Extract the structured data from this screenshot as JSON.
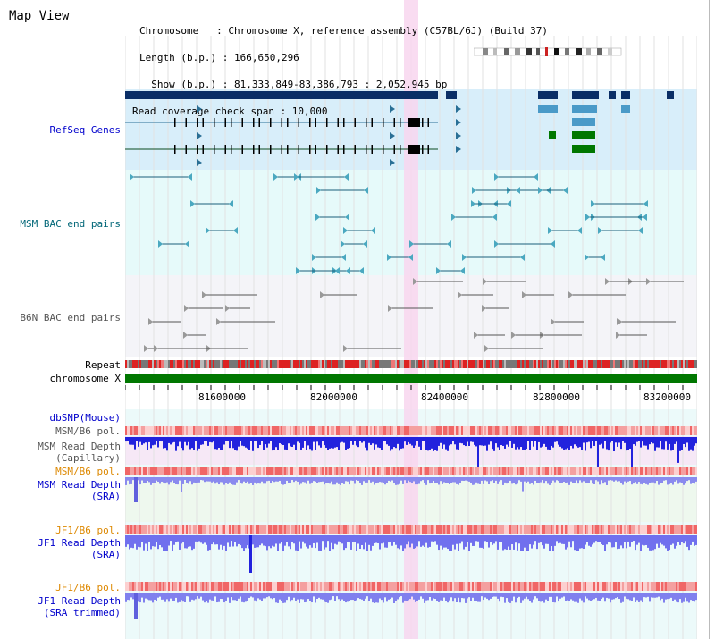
{
  "header": {
    "title": "Map View",
    "lines": [
      "Chromosome   : Chromosome X, reference assembly (C57BL/6J) (Build 37)",
      "Length (b.p.) : 166,650,296",
      "  Show (b.p.) : 81,333,849-83,386,793 : 2,052,945 bp",
      "Read coverage check span : 10,000"
    ]
  },
  "tracks": {
    "refseq": "RefSeq Genes",
    "msm_bac": "MSM BAC end pairs",
    "b6n_bac": "B6N BAC end pairs",
    "repeat": "Repeat",
    "chromosome": "chromosome X",
    "dbsnp": "dbSNP(Mouse)",
    "msm_pol1": "MSM/B6 pol.",
    "msm_depth1_a": "MSM Read Depth",
    "msm_depth1_b": "(Capillary)",
    "msm_pol2": "MSM/B6 pol.",
    "msm_depth2_a": "MSM Read Depth",
    "msm_depth2_b": "(SRA)",
    "jf1_pol1": "JF1/B6 pol.",
    "jf1_depth1_a": "JF1 Read Depth",
    "jf1_depth1_b": "(SRA)",
    "jf1_pol2": "JF1/B6 pol.",
    "jf1_depth2_a": "JF1 Read Depth",
    "jf1_depth2_b": "(SRA trimmed)"
  },
  "axis": {
    "ticks": [
      "81600000",
      "82000000",
      "82400000",
      "82800000",
      "83200000"
    ]
  },
  "colors": {
    "label_blue": "#0000cc",
    "label_teal": "#006677",
    "label_orange": "#dd8800",
    "refseq_bg": "#d8eefa",
    "msm_bg": "#e6fafa",
    "b6n_bg": "#f4f4f8",
    "highlight": "#f8d6ee",
    "chromosome": "#007700"
  }
}
